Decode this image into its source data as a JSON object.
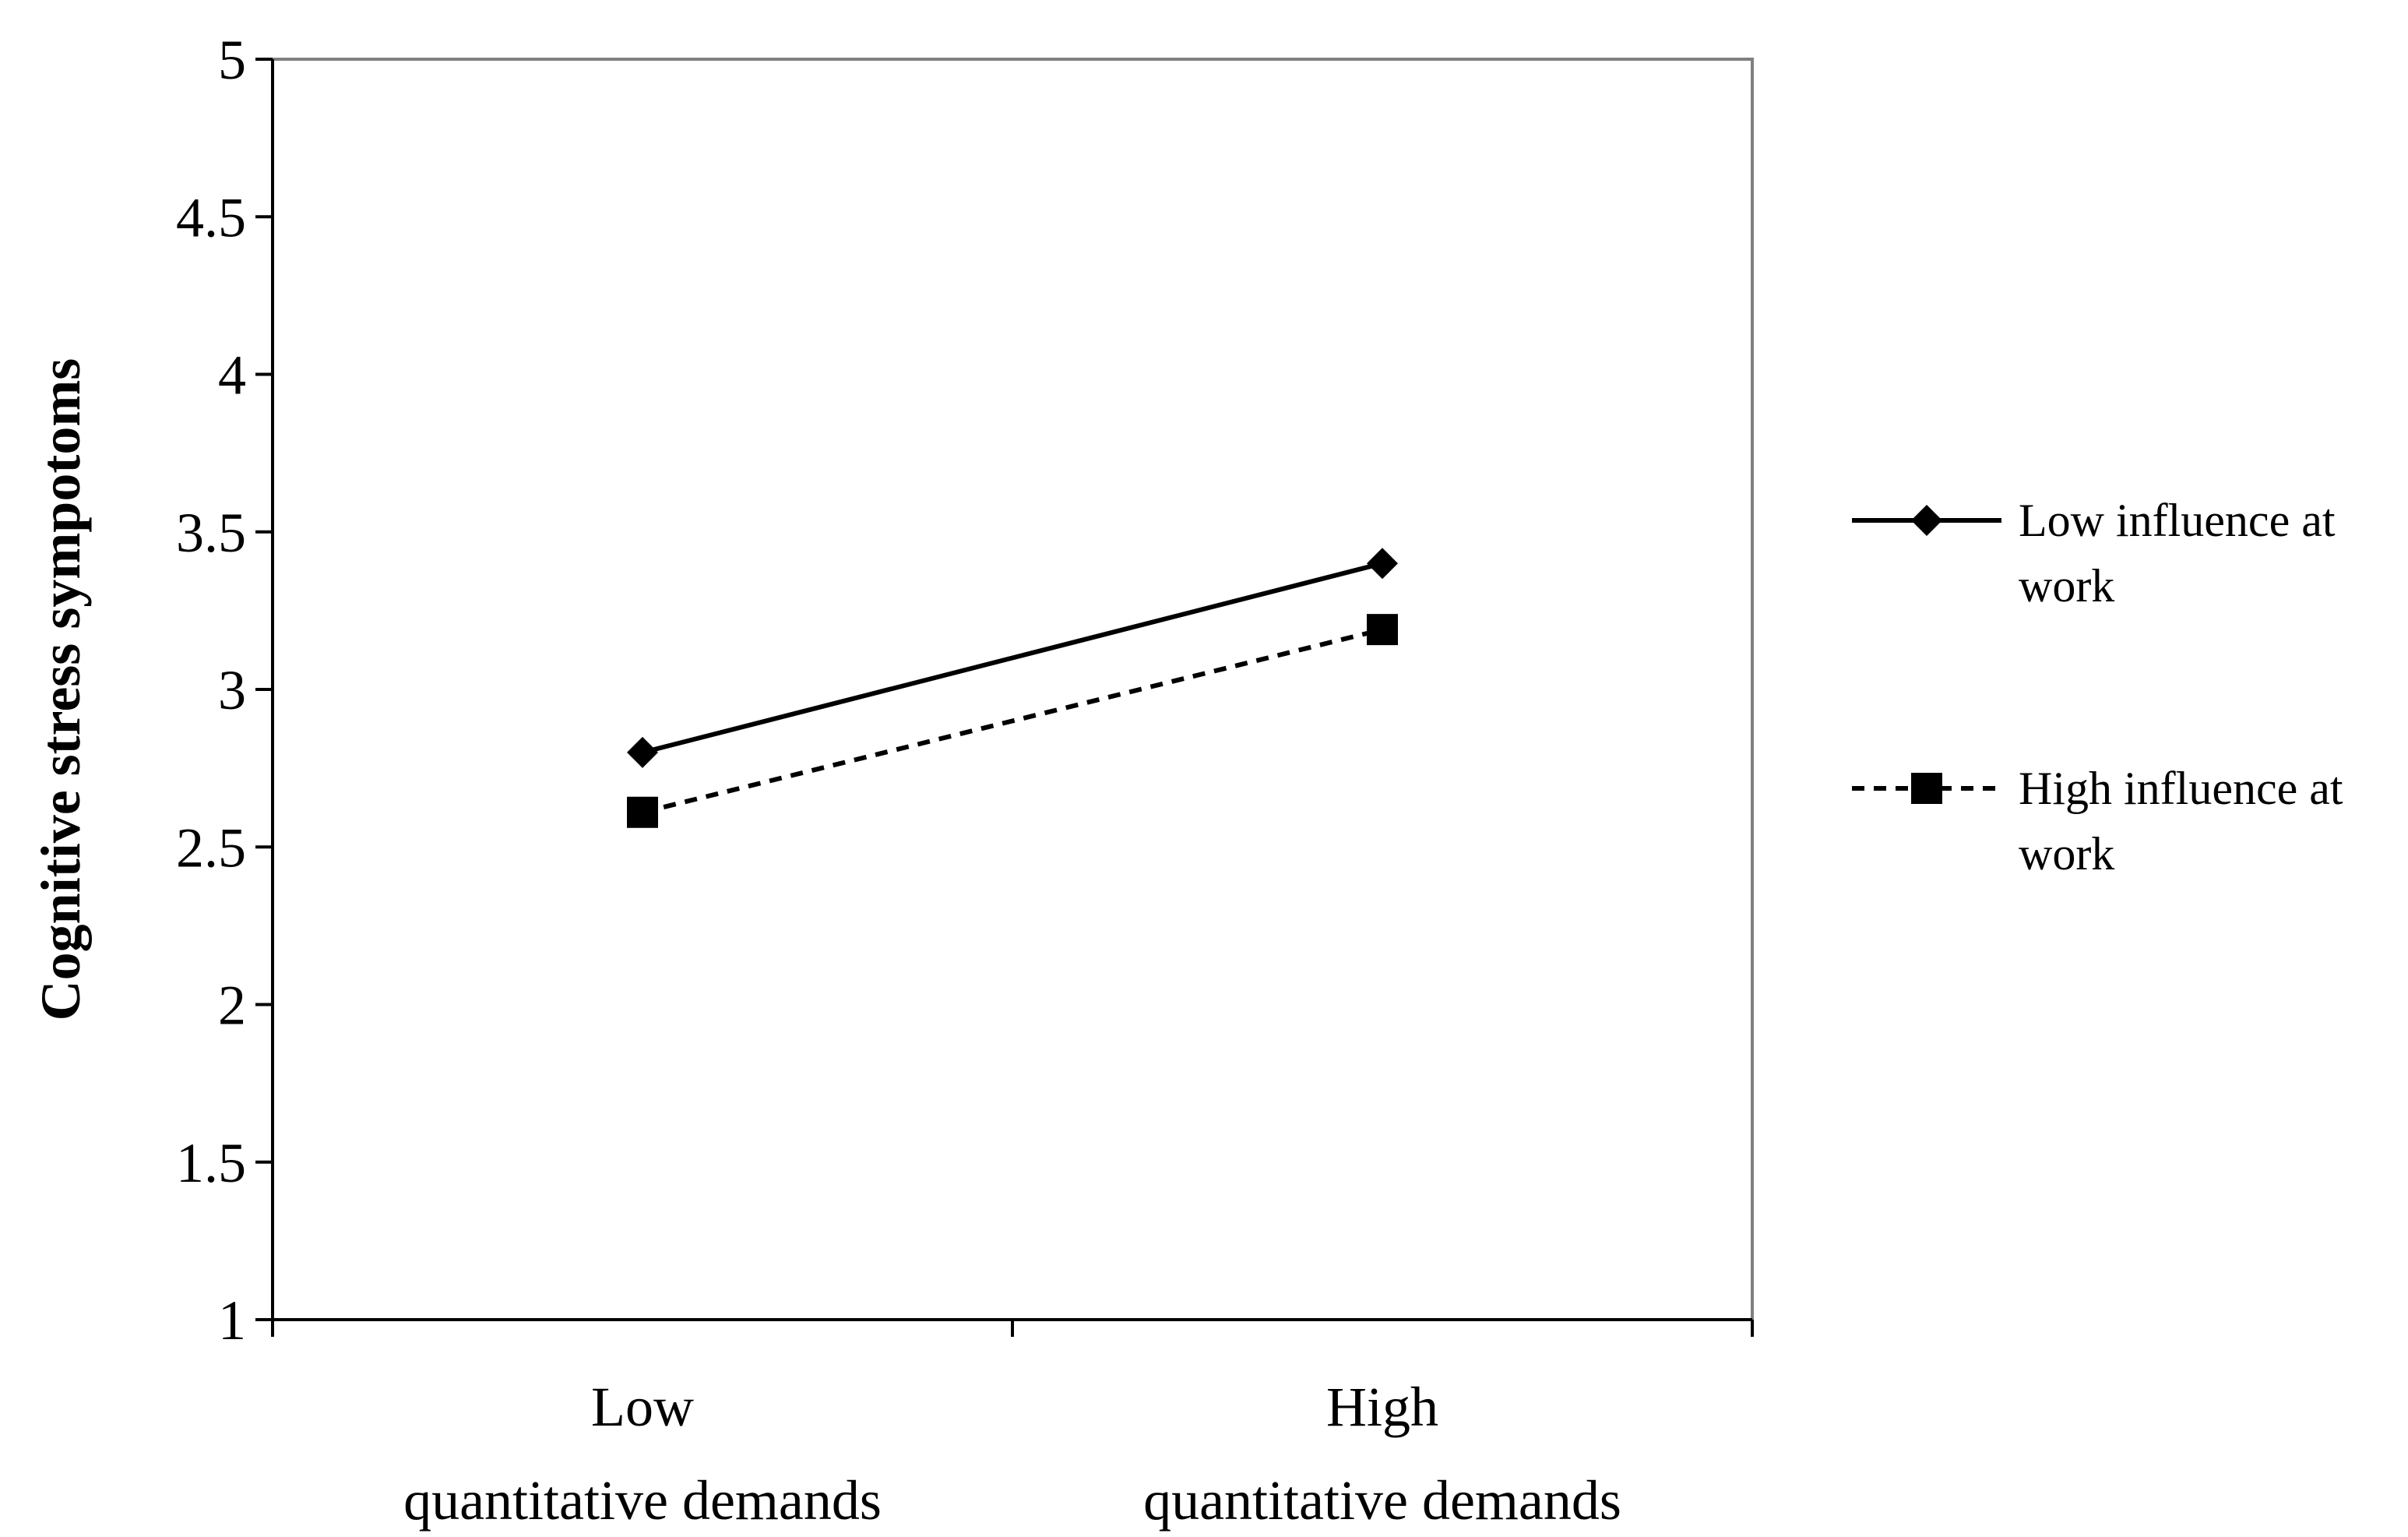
{
  "chart_data": {
    "type": "line",
    "title": "",
    "xlabel": "",
    "ylabel": "Cognitive stress sympotoms",
    "ylim": [
      1,
      5
    ],
    "yticks": [
      "1",
      "1.5",
      "2",
      "2.5",
      "3",
      "3.5",
      "4",
      "4.5",
      "5"
    ],
    "categories": [
      [
        "Low",
        "quantitative demands"
      ],
      [
        "High",
        "quantitative demands"
      ]
    ],
    "grid": false,
    "legend_position": "right",
    "series": [
      {
        "name": "Low influence at work",
        "legend_lines": [
          "Low influence at",
          "work"
        ],
        "values": [
          2.8,
          3.4
        ],
        "line_style": "solid",
        "marker": "diamond",
        "color": "#000000"
      },
      {
        "name": "High influence at work",
        "legend_lines": [
          "High influence at",
          "work"
        ],
        "values": [
          2.61,
          3.19
        ],
        "line_style": "dashed",
        "marker": "square",
        "color": "#000000"
      }
    ]
  },
  "colors": {
    "axis": "#000000",
    "plot_border": "#808080",
    "background": "#ffffff"
  }
}
